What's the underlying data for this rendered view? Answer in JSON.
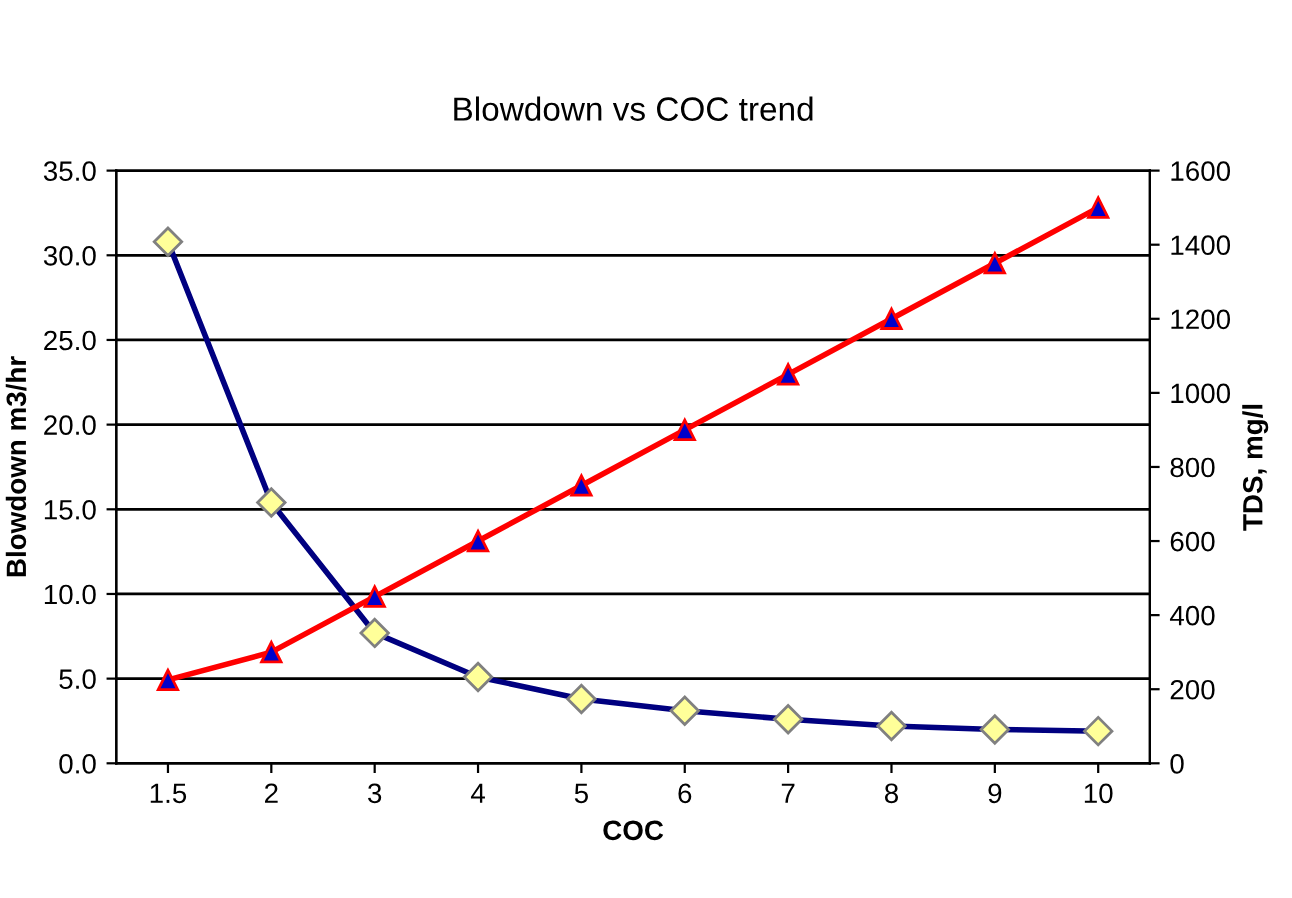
{
  "chart_data": {
    "type": "line",
    "title": "Blowdown vs COC trend",
    "xlabel": "COC",
    "ylabel": "Blowdown m3/hr",
    "y2label": "TDS, mg/l",
    "categories": [
      "1.5",
      "2",
      "3",
      "4",
      "5",
      "6",
      "7",
      "8",
      "9",
      "10"
    ],
    "series": [
      {
        "color": "#000080",
        "marker": "diamond",
        "values": [
          30.8,
          15.4,
          7.7,
          5.1,
          3.8,
          3.1,
          2.6,
          2.2,
          2.0,
          1.9
        ]
      },
      {
        "color": "#ff0000",
        "marker": "triangle",
        "axis": "y2",
        "values": [
          225,
          300,
          450,
          600,
          750,
          900,
          1050,
          1200,
          1350,
          1500
        ]
      }
    ],
    "ylim": [
      0,
      35
    ],
    "yticks": [
      {
        "value": 0,
        "label": "0.0"
      },
      {
        "value": 5,
        "label": "5.0"
      },
      {
        "value": 10,
        "label": "10.0"
      },
      {
        "value": 15,
        "label": "15.0"
      },
      {
        "value": 20,
        "label": "20.0"
      },
      {
        "value": 25,
        "label": "25.0"
      },
      {
        "value": 30,
        "label": "30.0"
      },
      {
        "value": 35,
        "label": "35.0"
      }
    ],
    "y2lim": [
      0,
      1600
    ],
    "y2ticks": [
      0,
      200,
      400,
      600,
      800,
      1000,
      1200,
      1400,
      1600
    ],
    "grid": "y",
    "legend": false,
    "line_style": "solid"
  }
}
